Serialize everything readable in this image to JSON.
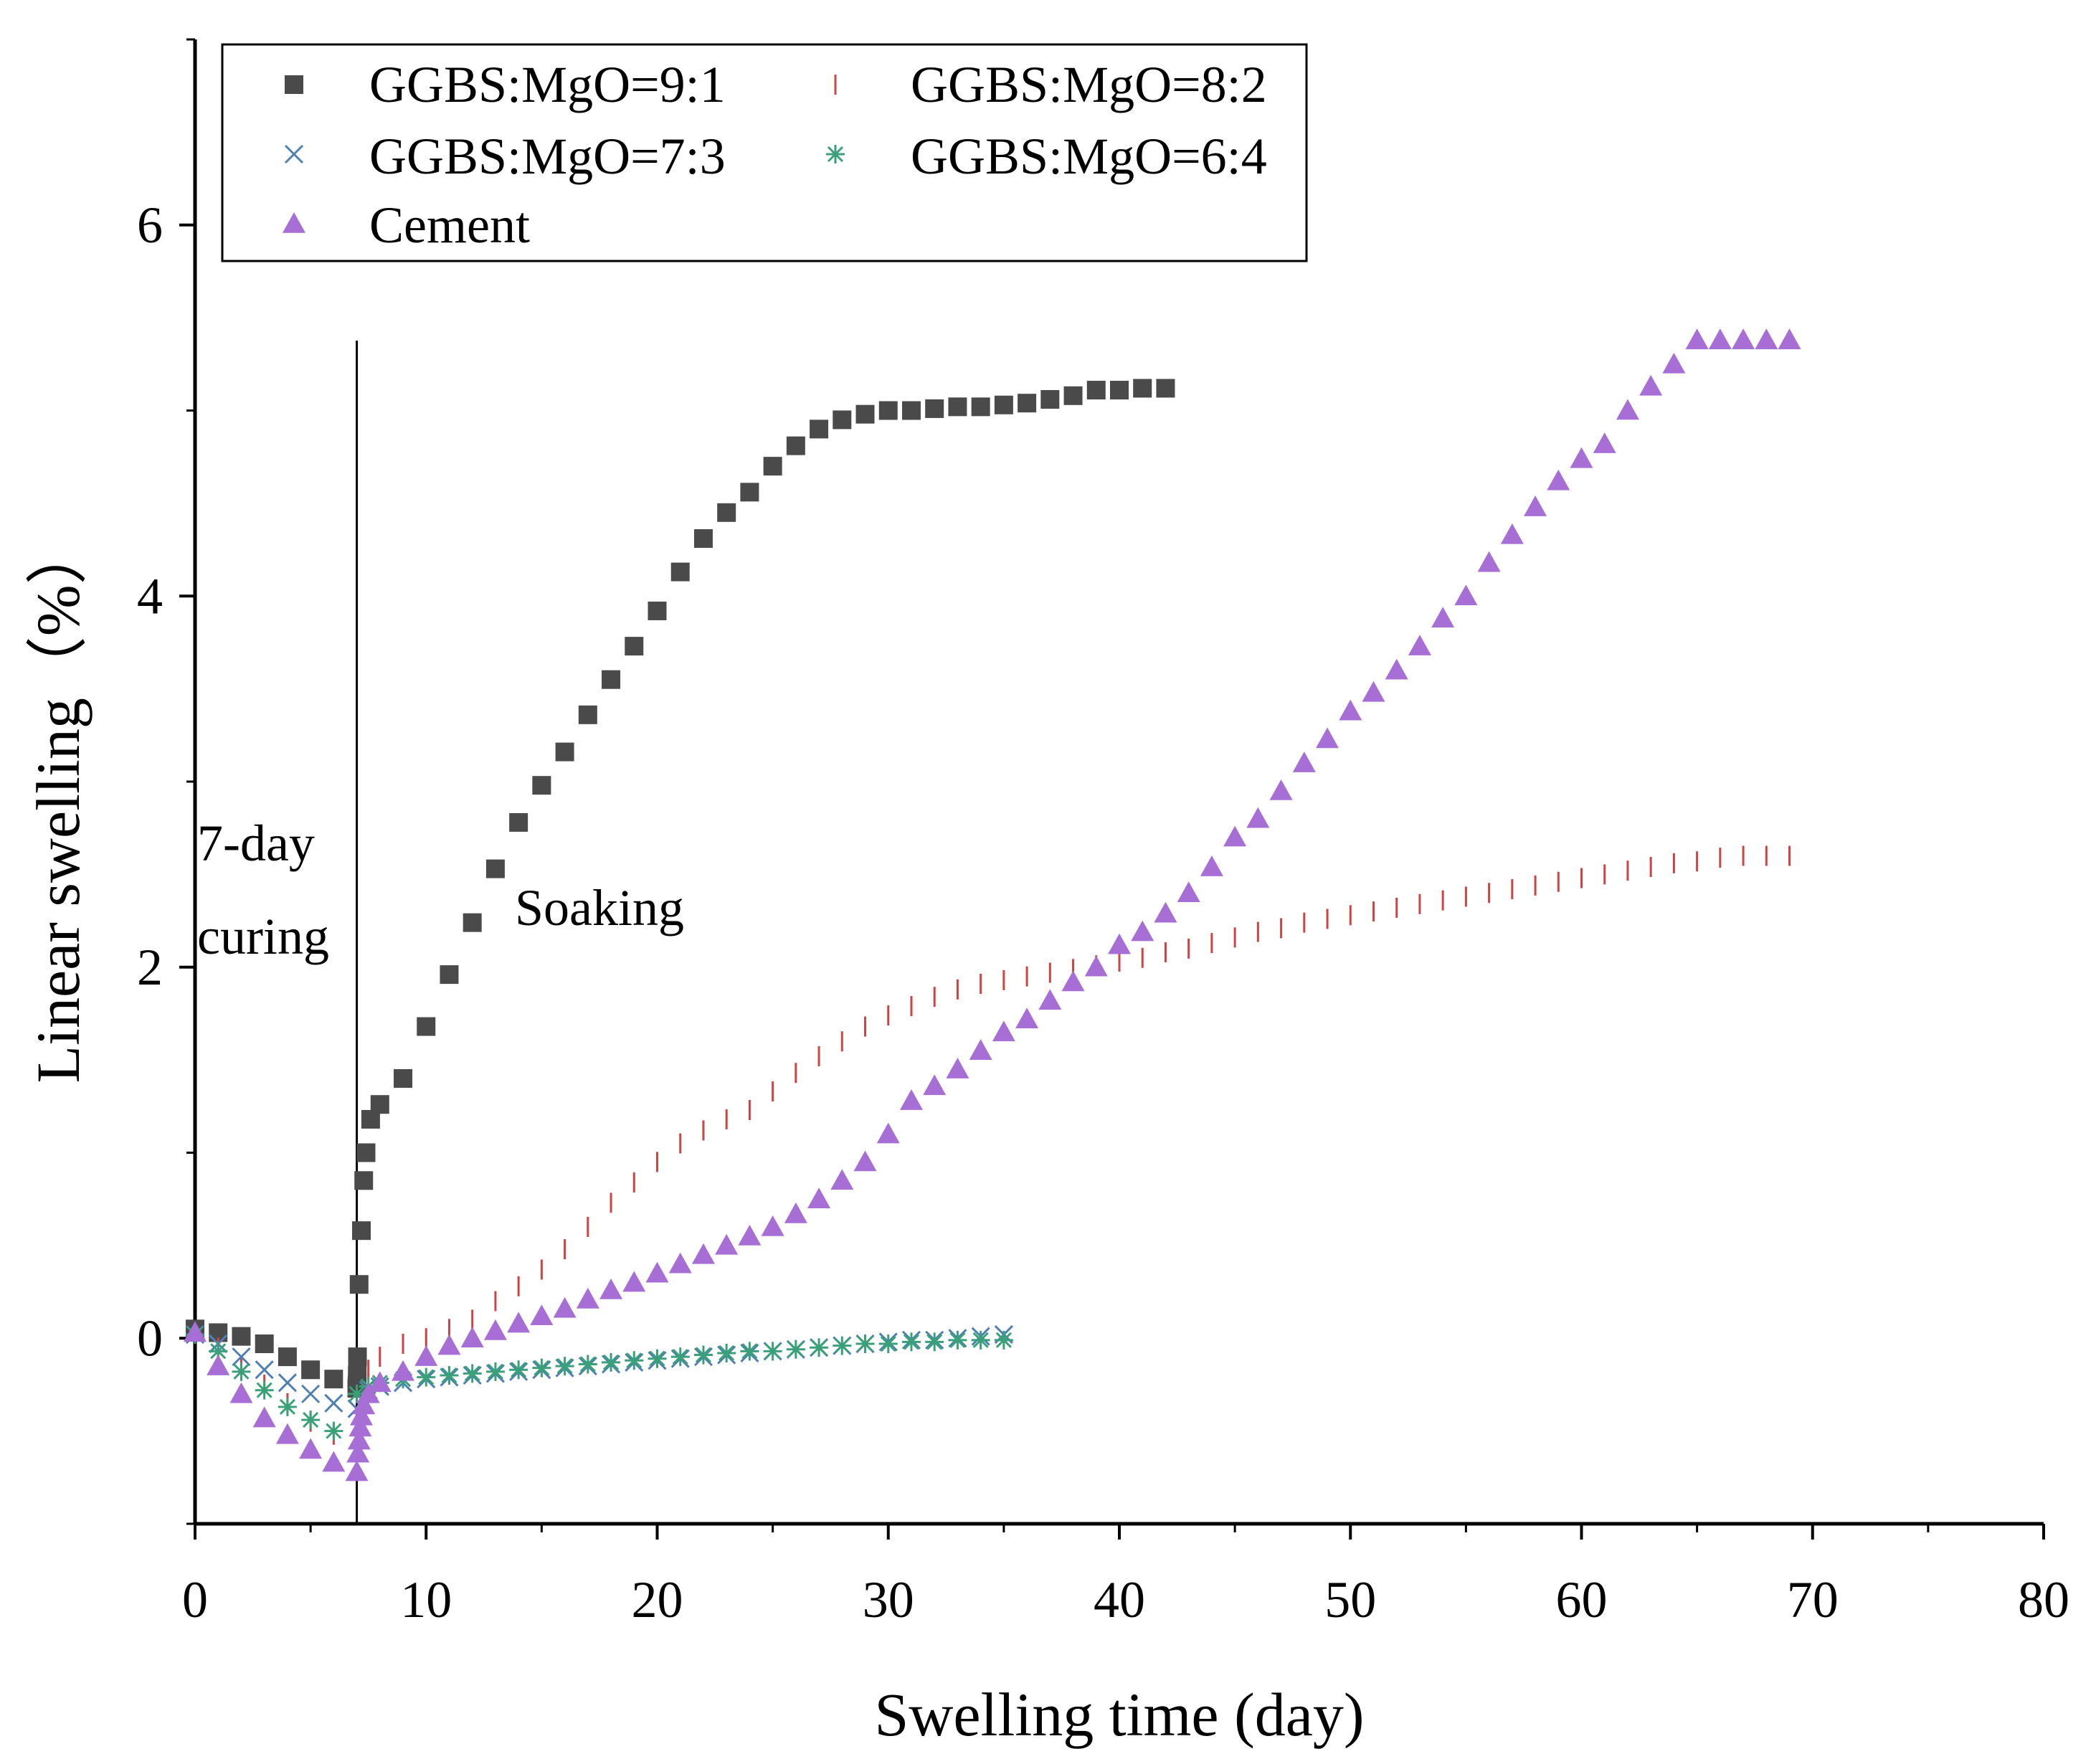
{
  "chart_data": {
    "type": "scatter",
    "title": "",
    "xlabel": "Swelling time (day)",
    "ylabel": "Linear swelling（%）",
    "xlim": [
      0,
      80
    ],
    "ylim": [
      -1,
      7
    ],
    "xticks": [
      0,
      10,
      20,
      30,
      40,
      50,
      60,
      70,
      80
    ],
    "yticks": [
      0,
      2,
      4,
      6
    ],
    "legend_position": "top-left",
    "annotations": {
      "curing_line_x": 7,
      "curing_label_1": "7-day",
      "curing_label_2": "curing",
      "soaking_label": "Soaking"
    },
    "series": [
      {
        "name": "GGBS:MgO=9:1",
        "marker": "square",
        "color": "#4a4a4a",
        "x": [
          0,
          1,
          2,
          3,
          4,
          5,
          6,
          7,
          7.01,
          7.02,
          7.03,
          7.1,
          7.2,
          7.3,
          7.4,
          7.6,
          8,
          9,
          10,
          11,
          12,
          13,
          14,
          15,
          16,
          17,
          18,
          19,
          20,
          21,
          22,
          23,
          24,
          25,
          26,
          27,
          28,
          29,
          30,
          31,
          32,
          33,
          34,
          35,
          36,
          37,
          38,
          39,
          40,
          41,
          42
        ],
        "y": [
          0.05,
          0.03,
          0.01,
          -0.03,
          -0.1,
          -0.17,
          -0.22,
          -0.27,
          -0.25,
          -0.2,
          -0.1,
          0.29,
          0.58,
          0.85,
          1.0,
          1.18,
          1.26,
          1.4,
          1.68,
          1.96,
          2.24,
          2.53,
          2.78,
          2.98,
          3.16,
          3.36,
          3.55,
          3.73,
          3.92,
          4.13,
          4.31,
          4.45,
          4.56,
          4.7,
          4.81,
          4.9,
          4.95,
          4.98,
          5.0,
          5.0,
          5.01,
          5.02,
          5.02,
          5.03,
          5.04,
          5.06,
          5.08,
          5.11,
          5.11,
          5.12,
          5.12
        ]
      },
      {
        "name": "GGBS:MgO=8:2",
        "marker": "vline",
        "color": "#cc4444",
        "x": [
          0,
          1,
          2,
          3,
          4,
          5,
          6,
          7,
          7.5,
          8,
          9,
          10,
          11,
          12,
          13,
          14,
          15,
          16,
          17,
          18,
          19,
          20,
          21,
          22,
          23,
          24,
          25,
          26,
          27,
          28,
          29,
          30,
          31,
          32,
          33,
          34,
          35,
          36,
          37,
          38,
          39,
          40,
          41,
          42,
          43,
          44,
          45,
          46,
          47,
          48,
          49,
          50,
          51,
          52,
          53,
          54,
          55,
          56,
          57,
          58,
          59,
          60,
          61,
          62,
          63,
          64,
          65,
          66,
          67,
          68,
          69
        ],
        "y": [
          0.03,
          -0.05,
          -0.15,
          -0.25,
          -0.35,
          -0.45,
          -0.52,
          -0.55,
          -0.17,
          -0.1,
          -0.03,
          0.0,
          0.05,
          0.1,
          0.2,
          0.28,
          0.37,
          0.48,
          0.6,
          0.73,
          0.84,
          0.95,
          1.05,
          1.12,
          1.18,
          1.23,
          1.33,
          1.43,
          1.52,
          1.6,
          1.68,
          1.74,
          1.79,
          1.84,
          1.88,
          1.91,
          1.93,
          1.95,
          1.97,
          1.99,
          2.01,
          2.03,
          2.05,
          2.08,
          2.1,
          2.13,
          2.16,
          2.19,
          2.21,
          2.24,
          2.26,
          2.28,
          2.3,
          2.32,
          2.34,
          2.36,
          2.38,
          2.4,
          2.42,
          2.44,
          2.46,
          2.48,
          2.5,
          2.52,
          2.54,
          2.56,
          2.57,
          2.59,
          2.6,
          2.6,
          2.6
        ]
      },
      {
        "name": "GGBS:MgO=7:3",
        "marker": "x",
        "color": "#4f7fb3",
        "x": [
          0,
          1,
          2,
          3,
          4,
          5,
          6,
          7,
          7.5,
          8,
          9,
          10,
          11,
          12,
          13,
          14,
          15,
          16,
          17,
          18,
          19,
          20,
          21,
          22,
          23,
          24,
          25,
          26,
          27,
          28,
          29,
          30,
          31,
          32,
          33,
          34,
          35
        ],
        "y": [
          0.02,
          -0.03,
          -0.1,
          -0.17,
          -0.24,
          -0.3,
          -0.35,
          -0.38,
          -0.28,
          -0.26,
          -0.24,
          -0.22,
          -0.21,
          -0.2,
          -0.19,
          -0.18,
          -0.17,
          -0.16,
          -0.15,
          -0.14,
          -0.13,
          -0.12,
          -0.11,
          -0.1,
          -0.09,
          -0.08,
          -0.07,
          -0.06,
          -0.05,
          -0.04,
          -0.03,
          -0.02,
          -0.01,
          -0.01,
          0.0,
          0.01,
          0.02
        ]
      },
      {
        "name": "GGBS:MgO=6:4",
        "marker": "star",
        "color": "#3aa07a",
        "x": [
          0,
          1,
          2,
          3,
          4,
          5,
          6,
          7,
          7.5,
          8,
          9,
          10,
          11,
          12,
          13,
          14,
          15,
          16,
          17,
          18,
          19,
          20,
          21,
          22,
          23,
          24,
          25,
          26,
          27,
          28,
          29,
          30,
          31,
          32,
          33,
          34,
          35
        ],
        "y": [
          0.02,
          -0.07,
          -0.18,
          -0.28,
          -0.37,
          -0.44,
          -0.5,
          -0.3,
          -0.26,
          -0.24,
          -0.22,
          -0.21,
          -0.2,
          -0.19,
          -0.18,
          -0.17,
          -0.16,
          -0.15,
          -0.14,
          -0.13,
          -0.12,
          -0.11,
          -0.1,
          -0.09,
          -0.08,
          -0.07,
          -0.07,
          -0.06,
          -0.05,
          -0.04,
          -0.03,
          -0.03,
          -0.02,
          -0.02,
          -0.01,
          -0.01,
          -0.01
        ]
      },
      {
        "name": "Cement",
        "marker": "triangle",
        "color": "#a76fd6",
        "x": [
          0,
          1,
          2,
          3,
          4,
          5,
          6,
          7,
          7.05,
          7.1,
          7.15,
          7.2,
          7.3,
          7.5,
          8,
          9,
          10,
          11,
          12,
          13,
          14,
          15,
          16,
          17,
          18,
          19,
          20,
          21,
          22,
          23,
          24,
          25,
          26,
          27,
          28,
          29,
          30,
          31,
          32,
          33,
          34,
          35,
          36,
          37,
          38,
          39,
          40,
          41,
          42,
          43,
          44,
          45,
          46,
          47,
          48,
          49,
          50,
          51,
          52,
          53,
          54,
          55,
          56,
          57,
          58,
          59,
          60,
          61,
          62,
          63,
          64,
          65,
          66,
          67,
          68,
          69
        ],
        "y": [
          0.03,
          -0.15,
          -0.3,
          -0.43,
          -0.52,
          -0.6,
          -0.67,
          -0.72,
          -0.62,
          -0.55,
          -0.48,
          -0.42,
          -0.36,
          -0.3,
          -0.24,
          -0.18,
          -0.1,
          -0.04,
          0.0,
          0.04,
          0.08,
          0.12,
          0.16,
          0.21,
          0.26,
          0.3,
          0.35,
          0.4,
          0.45,
          0.5,
          0.55,
          0.6,
          0.67,
          0.75,
          0.85,
          0.95,
          1.1,
          1.28,
          1.36,
          1.45,
          1.55,
          1.65,
          1.72,
          1.82,
          1.92,
          2.0,
          2.12,
          2.19,
          2.29,
          2.4,
          2.54,
          2.7,
          2.8,
          2.95,
          3.1,
          3.23,
          3.38,
          3.48,
          3.6,
          3.73,
          3.88,
          4.0,
          4.18,
          4.33,
          4.48,
          4.62,
          4.74,
          4.82,
          5.0,
          5.13,
          5.25,
          5.38,
          5.38,
          5.38,
          5.38,
          5.38
        ]
      }
    ]
  }
}
